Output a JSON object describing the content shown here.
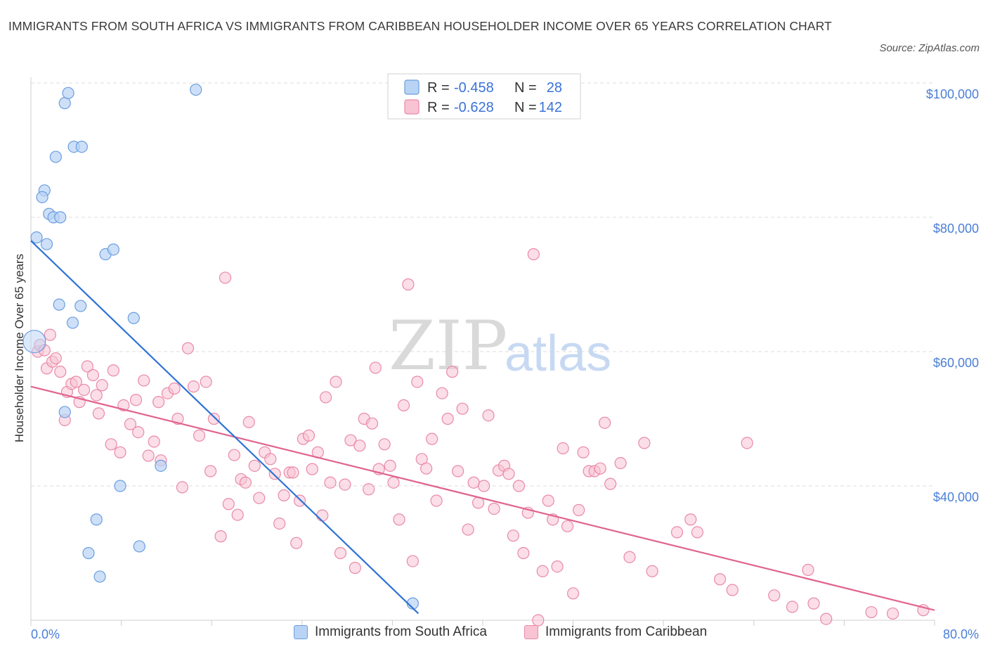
{
  "title": "IMMIGRANTS FROM SOUTH AFRICA VS IMMIGRANTS FROM CARIBBEAN HOUSEHOLDER INCOME OVER 65 YEARS CORRELATION CHART",
  "source": "Source: ZipAtlas.com",
  "watermark": {
    "zip": "ZIP",
    "atlas": "atlas"
  },
  "colors": {
    "south_africa_fill": "#b9d3f5",
    "south_africa_stroke": "#6a9ee0",
    "south_africa_line": "#2f73d6",
    "caribbean_fill": "#f8c3d3",
    "caribbean_stroke": "#e98aa8",
    "caribbean_line": "#e0648e",
    "tick_color": "#4a7fd6",
    "grid": "#dddddd"
  },
  "legend": {
    "rows": [
      {
        "r_label": "R = ",
        "r_value": "-0.458",
        "n_label": "N = ",
        "n_value": "28"
      },
      {
        "r_label": "R = ",
        "r_value": "-0.628",
        "n_label": "N = ",
        "n_value": "142"
      }
    ]
  },
  "chart_data": {
    "type": "scatter",
    "title": "IMMIGRANTS FROM SOUTH AFRICA VS IMMIGRANTS FROM CARIBBEAN HOUSEHOLDER INCOME OVER 65 YEARS CORRELATION CHART",
    "xlabel": "",
    "ylabel": "Householder Income Over 65 years",
    "xlim": [
      0,
      80
    ],
    "ylim": [
      20000,
      102000
    ],
    "x_tick_labels": [
      "0.0%",
      "80.0%"
    ],
    "y_ticks": [
      40000,
      60000,
      80000,
      100000
    ],
    "y_tick_labels": [
      "$40,000",
      "$60,000",
      "$80,000",
      "$100,000"
    ],
    "grid": true,
    "legend_position": "top-center",
    "series": [
      {
        "name": "Immigrants from South Africa",
        "r": -0.458,
        "n": 28,
        "trend": {
          "x": [
            0,
            34.3
          ],
          "y": [
            76500,
            21000
          ]
        },
        "points": [
          [
            0.3,
            61500
          ],
          [
            0.5,
            77000
          ],
          [
            1.2,
            84000
          ],
          [
            1.0,
            83000
          ],
          [
            1.4,
            76000
          ],
          [
            1.6,
            80500
          ],
          [
            2.0,
            80000
          ],
          [
            2.6,
            80000
          ],
          [
            2.2,
            89000
          ],
          [
            3.0,
            97000
          ],
          [
            3.3,
            98500
          ],
          [
            3.8,
            90500
          ],
          [
            4.5,
            90500
          ],
          [
            2.5,
            67000
          ],
          [
            4.4,
            66800
          ],
          [
            3.7,
            64300
          ],
          [
            6.6,
            74500
          ],
          [
            7.3,
            75200
          ],
          [
            9.1,
            65000
          ],
          [
            14.6,
            99000
          ],
          [
            3.0,
            51000
          ],
          [
            7.9,
            40000
          ],
          [
            11.5,
            43000
          ],
          [
            5.8,
            35000
          ],
          [
            5.1,
            30000
          ],
          [
            6.1,
            26500
          ],
          [
            9.6,
            31000
          ],
          [
            33.8,
            22500
          ]
        ]
      },
      {
        "name": "Immigrants from Caribbean",
        "r": -0.628,
        "n": 142,
        "trend": {
          "x": [
            0,
            80
          ],
          "y": [
            54800,
            21500
          ]
        },
        "points": [
          [
            0.6,
            60000
          ],
          [
            0.8,
            61000
          ],
          [
            1.2,
            60200
          ],
          [
            1.4,
            57500
          ],
          [
            1.7,
            62500
          ],
          [
            1.9,
            58500
          ],
          [
            2.2,
            59000
          ],
          [
            2.6,
            57000
          ],
          [
            3.0,
            49800
          ],
          [
            3.2,
            54000
          ],
          [
            3.6,
            55200
          ],
          [
            4.0,
            55500
          ],
          [
            4.3,
            52500
          ],
          [
            4.7,
            54300
          ],
          [
            5.0,
            57800
          ],
          [
            5.5,
            56500
          ],
          [
            5.8,
            53500
          ],
          [
            6.0,
            50800
          ],
          [
            6.3,
            55000
          ],
          [
            7.3,
            57200
          ],
          [
            7.1,
            46200
          ],
          [
            7.9,
            45000
          ],
          [
            8.2,
            52000
          ],
          [
            8.8,
            49200
          ],
          [
            9.3,
            52800
          ],
          [
            9.5,
            48000
          ],
          [
            10.0,
            55700
          ],
          [
            10.4,
            44500
          ],
          [
            10.9,
            46600
          ],
          [
            11.5,
            43800
          ],
          [
            11.3,
            52500
          ],
          [
            12.1,
            53800
          ],
          [
            12.7,
            54500
          ],
          [
            13.0,
            50000
          ],
          [
            13.4,
            39800
          ],
          [
            13.9,
            60500
          ],
          [
            14.4,
            54800
          ],
          [
            14.9,
            47500
          ],
          [
            15.5,
            55500
          ],
          [
            15.9,
            42200
          ],
          [
            16.2,
            50000
          ],
          [
            16.8,
            32500
          ],
          [
            17.2,
            71000
          ],
          [
            17.5,
            37300
          ],
          [
            18.0,
            44600
          ],
          [
            18.3,
            35700
          ],
          [
            18.6,
            41000
          ],
          [
            19.0,
            40500
          ],
          [
            19.3,
            49500
          ],
          [
            19.8,
            43000
          ],
          [
            20.2,
            38200
          ],
          [
            20.7,
            45000
          ],
          [
            21.2,
            44000
          ],
          [
            21.6,
            41800
          ],
          [
            22.0,
            34400
          ],
          [
            22.4,
            38600
          ],
          [
            22.9,
            42000
          ],
          [
            23.2,
            42000
          ],
          [
            23.5,
            31500
          ],
          [
            23.8,
            37800
          ],
          [
            24.1,
            47000
          ],
          [
            24.6,
            47500
          ],
          [
            24.9,
            42500
          ],
          [
            25.4,
            45000
          ],
          [
            25.8,
            35600
          ],
          [
            26.1,
            53200
          ],
          [
            26.5,
            40500
          ],
          [
            27.0,
            55500
          ],
          [
            27.4,
            30000
          ],
          [
            27.8,
            40200
          ],
          [
            28.3,
            46800
          ],
          [
            28.7,
            27800
          ],
          [
            29.1,
            46000
          ],
          [
            29.5,
            50000
          ],
          [
            29.9,
            39500
          ],
          [
            30.2,
            49300
          ],
          [
            30.5,
            57600
          ],
          [
            30.8,
            42500
          ],
          [
            31.3,
            46200
          ],
          [
            31.8,
            43000
          ],
          [
            32.1,
            40500
          ],
          [
            32.6,
            35000
          ],
          [
            33.0,
            52000
          ],
          [
            33.4,
            70000
          ],
          [
            33.8,
            28800
          ],
          [
            34.2,
            55500
          ],
          [
            34.6,
            44000
          ],
          [
            35.0,
            42600
          ],
          [
            35.5,
            47000
          ],
          [
            35.9,
            37800
          ],
          [
            36.4,
            53800
          ],
          [
            36.9,
            50000
          ],
          [
            37.3,
            57000
          ],
          [
            37.8,
            42200
          ],
          [
            38.2,
            51500
          ],
          [
            38.7,
            33500
          ],
          [
            39.2,
            40500
          ],
          [
            39.6,
            37500
          ],
          [
            40.1,
            40000
          ],
          [
            40.5,
            50500
          ],
          [
            41.0,
            36600
          ],
          [
            41.4,
            42300
          ],
          [
            41.9,
            43000
          ],
          [
            42.3,
            41800
          ],
          [
            42.7,
            32600
          ],
          [
            43.2,
            40000
          ],
          [
            43.6,
            30000
          ],
          [
            44.0,
            36000
          ],
          [
            44.5,
            74500
          ],
          [
            44.9,
            20000
          ],
          [
            45.3,
            27300
          ],
          [
            45.8,
            37800
          ],
          [
            46.2,
            35000
          ],
          [
            46.6,
            28000
          ],
          [
            47.1,
            45600
          ],
          [
            47.5,
            34000
          ],
          [
            48.0,
            24000
          ],
          [
            48.5,
            36400
          ],
          [
            48.9,
            45000
          ],
          [
            49.4,
            42200
          ],
          [
            49.9,
            42200
          ],
          [
            50.4,
            42600
          ],
          [
            50.8,
            49400
          ],
          [
            51.3,
            40300
          ],
          [
            52.2,
            43400
          ],
          [
            53.0,
            29400
          ],
          [
            54.3,
            46400
          ],
          [
            55.0,
            27300
          ],
          [
            57.2,
            33100
          ],
          [
            58.4,
            35000
          ],
          [
            59.0,
            33100
          ],
          [
            61.0,
            26100
          ],
          [
            62.1,
            24500
          ],
          [
            63.4,
            46400
          ],
          [
            65.8,
            23700
          ],
          [
            67.4,
            22000
          ],
          [
            68.8,
            27500
          ],
          [
            69.3,
            22500
          ],
          [
            70.4,
            20200
          ],
          [
            74.4,
            21200
          ],
          [
            76.3,
            21000
          ],
          [
            79.0,
            21500
          ]
        ]
      }
    ]
  },
  "bottom_legend": {
    "south_africa_label": "Immigrants from South Africa",
    "caribbean_label": "Immigrants from Caribbean"
  }
}
